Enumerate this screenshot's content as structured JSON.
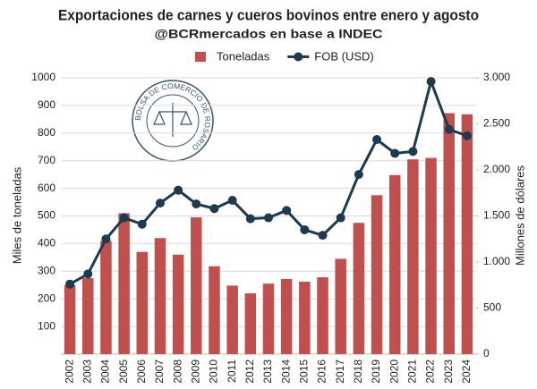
{
  "chart_data": {
    "type": "bar_line",
    "title": "Exportaciones de carnes y cueros bovinos entre enero y agosto",
    "subtitle": "@BCRmercados en base a INDEC",
    "y_label": "Miles de toneladas",
    "y2_label": "Millones de dólares",
    "logo_text": "BOLSA DE COMERCIO DE ROSARIO",
    "categories": [
      "2002",
      "2003",
      "2004",
      "2005",
      "2006",
      "2007",
      "2008",
      "2009",
      "2010",
      "2011",
      "2012",
      "2013",
      "2014",
      "2015",
      "2016",
      "2017",
      "2018",
      "2019",
      "2020",
      "2021",
      "2022",
      "2023",
      "2024"
    ],
    "series": [
      {
        "name": "Toneladas",
        "type": "bar",
        "color": "#c0504d",
        "values": [
          250,
          275,
          410,
          510,
          370,
          420,
          360,
          495,
          318,
          248,
          220,
          255,
          272,
          262,
          278,
          345,
          475,
          575,
          648,
          705,
          710,
          872,
          868
        ]
      },
      {
        "name": "FOB (USD)",
        "type": "line",
        "axis": "y2",
        "color": "#1d3a4f",
        "values": [
          760,
          870,
          1250,
          1480,
          1410,
          1640,
          1780,
          1630,
          1580,
          1670,
          1470,
          1480,
          1560,
          1350,
          1290,
          1480,
          1950,
          2330,
          2180,
          2200,
          2960,
          2440,
          2370
        ]
      }
    ],
    "ylim": [
      0,
      1000
    ],
    "yticks": [
      100,
      200,
      300,
      400,
      500,
      600,
      700,
      800,
      900,
      1000
    ],
    "y2lim": [
      0,
      3000
    ],
    "y2ticks": [
      0,
      500,
      {
        "value": 1000,
        "label": "1.000"
      },
      {
        "value": 1500,
        "label": "1.500"
      },
      {
        "value": 2000,
        "label": "2.000"
      },
      {
        "value": 2500,
        "label": "2.500"
      },
      {
        "value": 3000,
        "label": "3.000"
      }
    ],
    "grid": true,
    "legend": "top"
  }
}
